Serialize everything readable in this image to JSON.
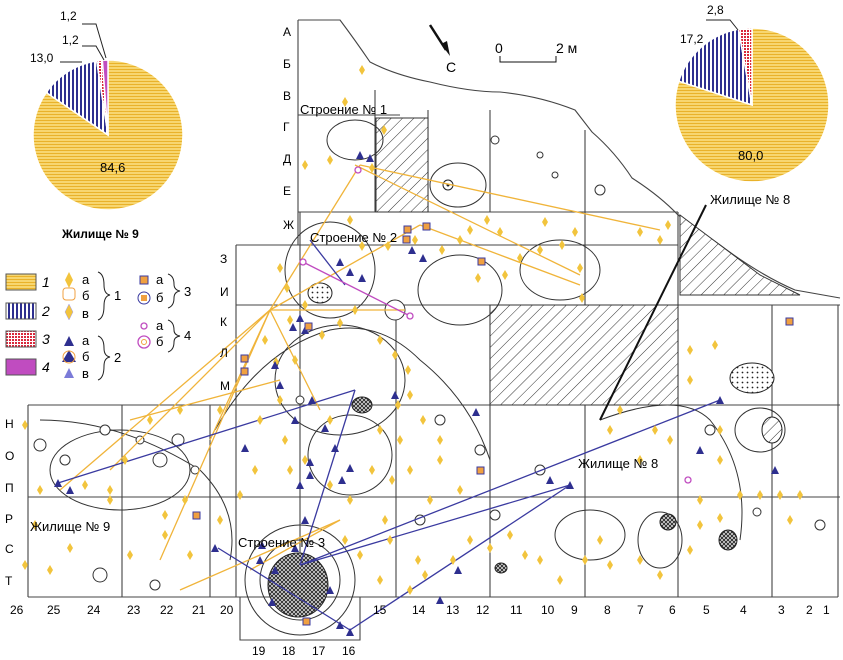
{
  "colors": {
    "yellow": "#f2c43d",
    "yellow_fill": "#f7d670",
    "blue": "#2e2f8f",
    "red": "#d9283b",
    "magenta": "#c04cc0",
    "link_yellow": "#f0b43a",
    "link_blue": "#3a3aa0"
  },
  "pies": {
    "dwelling9": {
      "title": "Жилище № 9",
      "slices": [
        84.6,
        13.0,
        1.2,
        1.2
      ],
      "labels": {
        "main": "84,6",
        "s2": "13,0",
        "s3": "1,2",
        "s4": "1,2"
      }
    },
    "dwelling8": {
      "title": "Жилище № 8",
      "slices": [
        80.0,
        17.2,
        2.8
      ],
      "labels": {
        "main": "80,0",
        "s2": "17,2",
        "s3": "2,8"
      }
    }
  },
  "map": {
    "north_arrow_label": "С",
    "scale": {
      "zero": "0",
      "end": "2 м"
    },
    "row_labels": [
      "А",
      "Б",
      "В",
      "Г",
      "Д",
      "Е",
      "Ж",
      "З",
      "И",
      "К",
      "Л",
      "М",
      "Н",
      "О",
      "П",
      "Р",
      "С",
      "Т"
    ],
    "col_labels": [
      "26",
      "25",
      "24",
      "23",
      "22",
      "21",
      "20",
      "15",
      "14",
      "13",
      "12",
      "11",
      "10",
      "9",
      "8",
      "7",
      "6",
      "5",
      "4",
      "3",
      "2",
      "1"
    ],
    "bottom_col_labels": [
      "19",
      "18",
      "17",
      "16"
    ],
    "structures": {
      "s1": "Строение № 1",
      "s2": "Строение № 2",
      "s3": "Строение № 3",
      "d8_top": "Жилище № 8",
      "d8_map": "Жилище № 8",
      "d9_map": "Жилище № 9"
    }
  },
  "legend": {
    "fill_items": [
      {
        "num": "1",
        "color": "yellow"
      },
      {
        "num": "2",
        "color": "blue"
      },
      {
        "num": "3",
        "color": "red"
      },
      {
        "num": "4",
        "color": "magenta"
      }
    ],
    "sub": {
      "a": "а",
      "b": "б",
      "v": "в"
    },
    "group_nums": {
      "g1": "1",
      "g2": "2",
      "g3": "3",
      "g4": "4"
    }
  }
}
